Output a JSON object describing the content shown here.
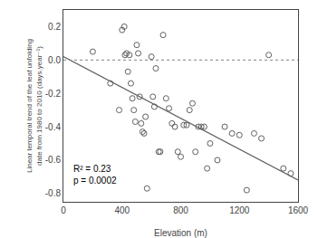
{
  "chart_data": {
    "type": "scatter",
    "xlabel": "Elevation (m)",
    "ylabel": "Linear temporal trend of the leaf unfolding\ndate from 1980 to 2010 (days.year⁻¹)",
    "xlim": [
      0,
      1600
    ],
    "ylim": [
      -0.85,
      0.3
    ],
    "xticks": [
      0,
      400,
      800,
      1200,
      1600
    ],
    "yticks": [
      -0.8,
      -0.6,
      -0.4,
      -0.2,
      {
        "value": 0.0,
        "label": "0.0"
      },
      0.2
    ],
    "grid": false,
    "series": [
      {
        "type": "scatter",
        "marker": "circle-open",
        "color": "#606060",
        "x": [
          200,
          320,
          380,
          400,
          415,
          420,
          430,
          440,
          450,
          460,
          470,
          480,
          490,
          500,
          510,
          520,
          530,
          540,
          550,
          560,
          570,
          600,
          610,
          620,
          630,
          650,
          660,
          680,
          700,
          720,
          740,
          760,
          780,
          800,
          820,
          840,
          860,
          880,
          900,
          920,
          940,
          960,
          980,
          1000,
          1050,
          1100,
          1150,
          1200,
          1250,
          1300,
          1350,
          1400,
          1500,
          1550
        ],
        "values": [
          0.05,
          -0.14,
          -0.3,
          0.18,
          0.2,
          0.03,
          0.04,
          -0.07,
          0.03,
          -0.14,
          -0.23,
          -0.3,
          -0.37,
          0.09,
          0.04,
          -0.22,
          -0.38,
          -0.43,
          -0.44,
          -0.34,
          -0.77,
          0.02,
          -0.22,
          -0.28,
          -0.05,
          -0.55,
          -0.55,
          0.15,
          -0.23,
          -0.29,
          -0.38,
          -0.4,
          -0.55,
          -0.58,
          -0.39,
          -0.39,
          -0.3,
          -0.26,
          -0.55,
          -0.4,
          -0.4,
          -0.4,
          -0.65,
          -0.5,
          -0.6,
          -0.4,
          -0.44,
          -0.45,
          -0.78,
          -0.44,
          -0.47,
          0.03,
          -0.65,
          -0.68
        ]
      },
      {
        "type": "line",
        "line_style": "solid",
        "color": "#606060",
        "x": [
          0,
          1600
        ],
        "values": [
          0.02,
          -0.72
        ]
      },
      {
        "type": "line",
        "line_style": "dotted",
        "color": "#808080",
        "x": [
          0,
          1600
        ],
        "values": [
          0,
          0
        ]
      }
    ],
    "annotations": [
      {
        "text": "R² = 0.23\np = 0.0002",
        "x": 55,
        "y": -0.61
      }
    ]
  }
}
